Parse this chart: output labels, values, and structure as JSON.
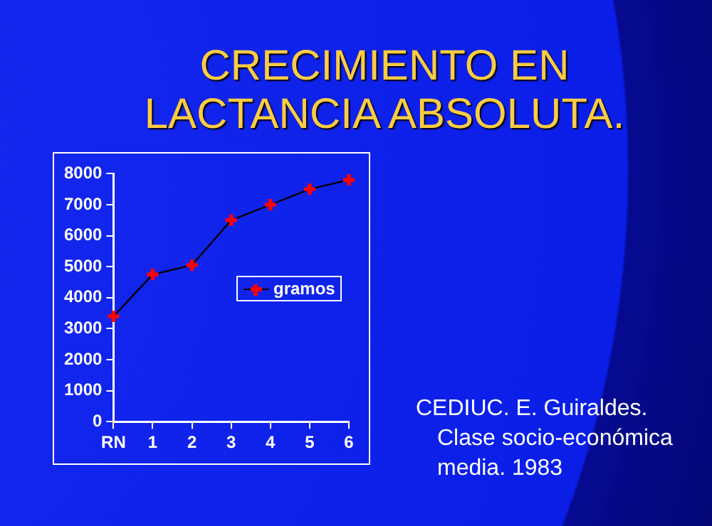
{
  "chart_data": {
    "type": "line",
    "title": "CRECIMIENTO EN LACTANCIA ABSOLUTA.",
    "categories": [
      "RN",
      "1",
      "2",
      "3",
      "4",
      "5",
      "6"
    ],
    "series": [
      {
        "name": "gramos",
        "color": "#ff0000",
        "values": [
          3400,
          4750,
          5050,
          6500,
          7000,
          7500,
          7800
        ]
      }
    ],
    "ylim": [
      0,
      8000
    ],
    "yticks": [
      0,
      1000,
      2000,
      3000,
      4000,
      5000,
      6000,
      7000,
      8000
    ],
    "grid": false,
    "legend": "right",
    "marker": "cross",
    "line_style": "solid",
    "annotations": [
      "CEDIUC. E. Guiraldes. Clase socio-económica media. 1983"
    ]
  }
}
